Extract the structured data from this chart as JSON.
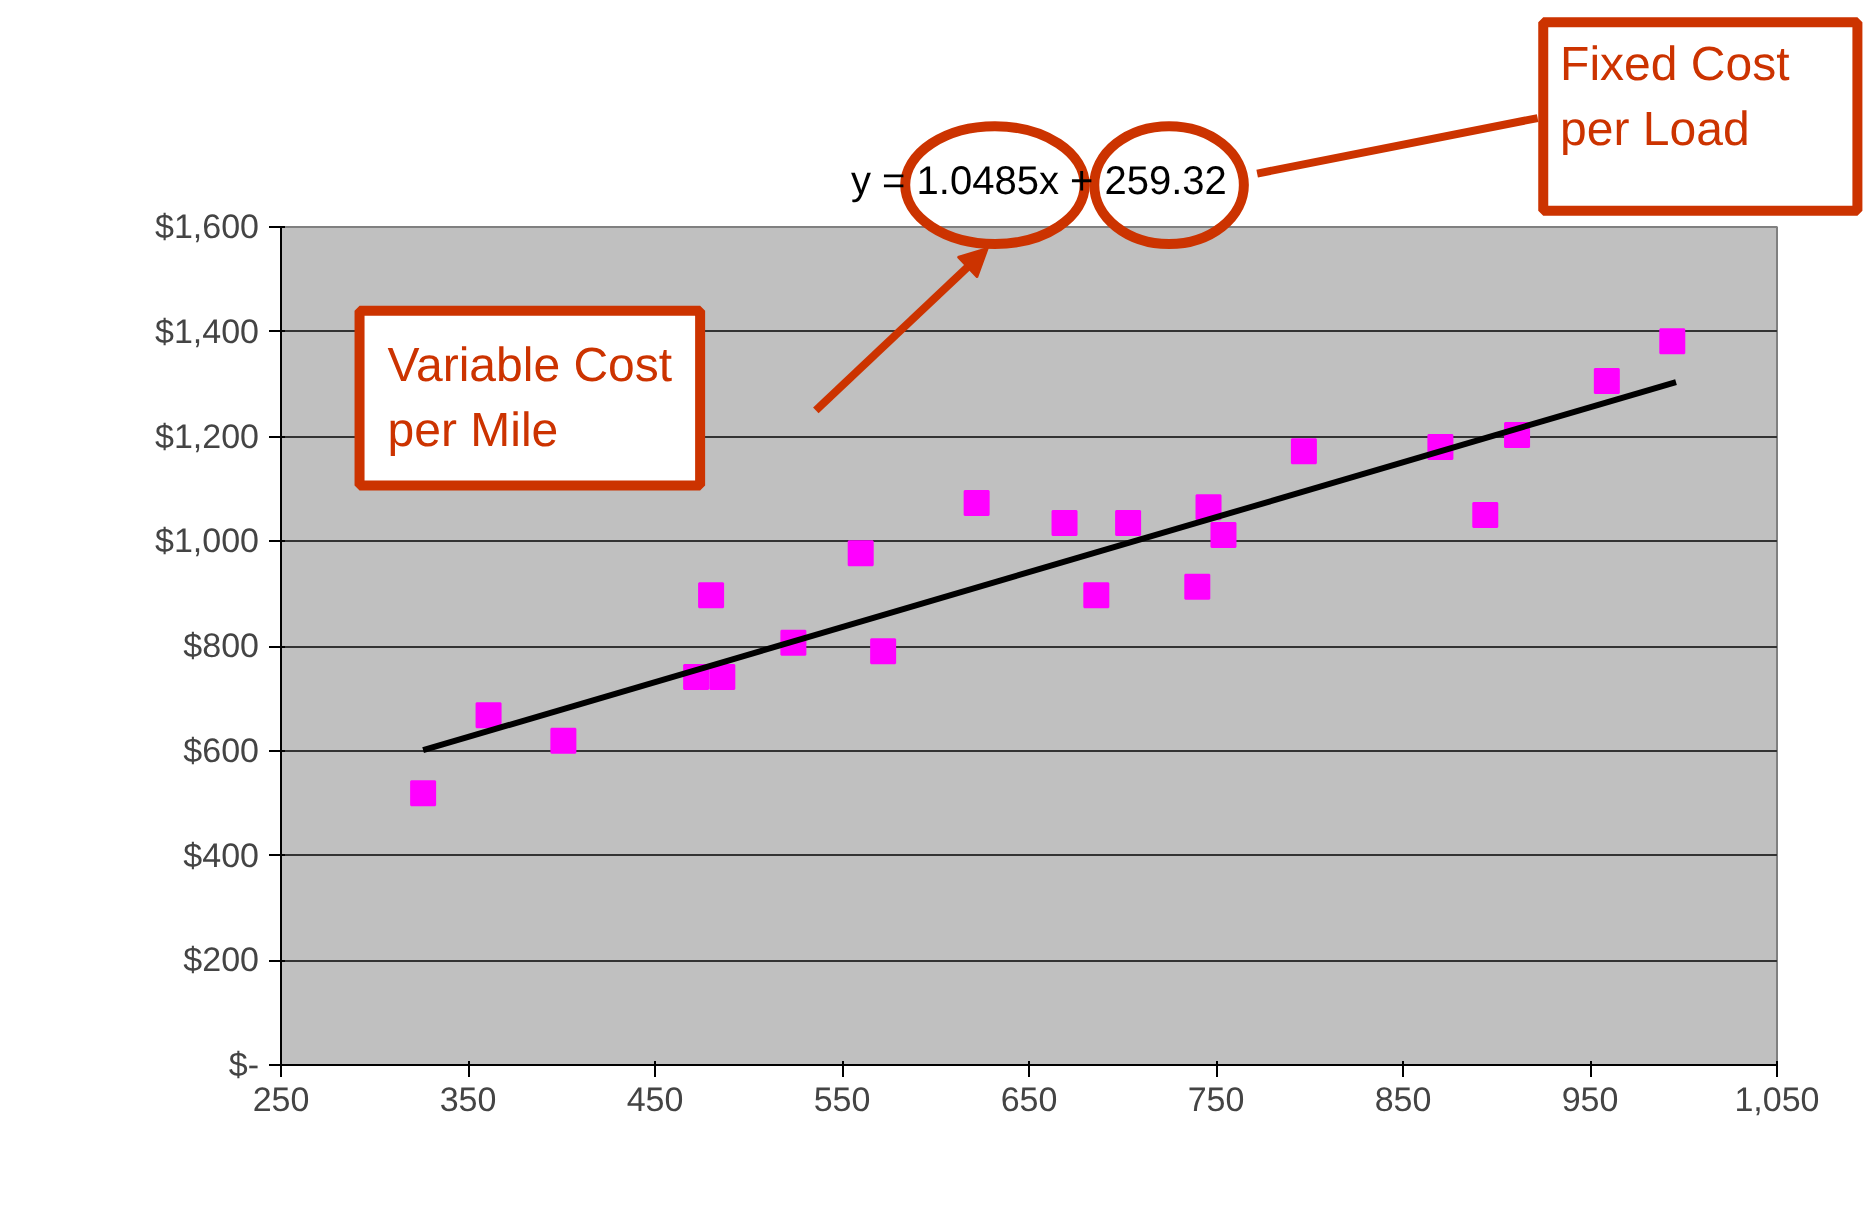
{
  "chart_data": {
    "type": "scatter",
    "xlim": [
      250,
      1050
    ],
    "xticks": [
      250,
      350,
      450,
      550,
      650,
      750,
      850,
      950,
      {
        "value": 1050,
        "label": "1,050"
      }
    ],
    "ylim": [
      0,
      1600
    ],
    "yticks": [
      {
        "value": 0,
        "label": "$-"
      },
      {
        "value": 200,
        "label": "$200"
      },
      {
        "value": 400,
        "label": "$400"
      },
      {
        "value": 600,
        "label": "$600"
      },
      {
        "value": 800,
        "label": "$800"
      },
      {
        "value": 1000,
        "label": "$1,000"
      },
      {
        "value": 1200,
        "label": "$1,200"
      },
      {
        "value": 1400,
        "label": "$1,400"
      },
      {
        "value": 1600,
        "label": "$1,600"
      }
    ],
    "grid": "y",
    "series": [
      {
        "marker": "square",
        "color": "#ff00ff",
        "x": [
          326,
          361,
          401,
          472,
          480,
          486,
          524,
          560,
          572,
          622,
          669,
          686,
          703,
          740,
          746,
          754,
          797,
          870,
          894,
          911,
          959,
          994
        ],
        "values": [
          519,
          668,
          619,
          741,
          897,
          741,
          806,
          977,
          790,
          1073,
          1035,
          897,
          1035,
          913,
          1065,
          1012,
          1172,
          1180,
          1050,
          1203,
          1306,
          1382
        ]
      },
      {
        "type": "line",
        "color": "#000000",
        "x": [
          326,
          996
        ],
        "values": [
          601,
          1304
        ]
      }
    ],
    "annotations": [
      "y = 1.0485x + 259.32",
      "Variable Cost per Mile",
      "Fixed Cost per Load"
    ]
  }
}
